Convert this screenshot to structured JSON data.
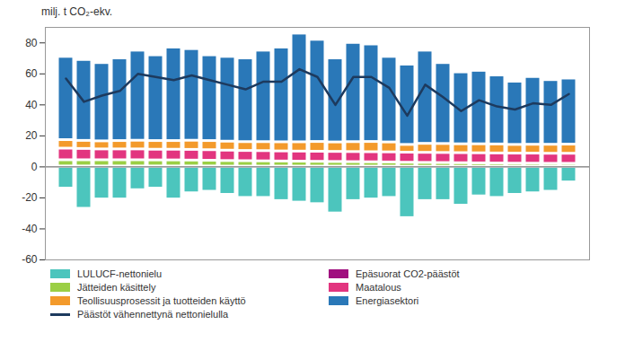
{
  "chart_data": {
    "type": "bar",
    "title": "milj. t CO₂-ekv.",
    "stacked": true,
    "grid": false,
    "tick_labels": "y",
    "categories": [
      null,
      null,
      null,
      null,
      null,
      null,
      null,
      null,
      null,
      null,
      null,
      null,
      null,
      null,
      null,
      null,
      null,
      null,
      null,
      null,
      null,
      null,
      null,
      null,
      null,
      null,
      null,
      null,
      null
    ],
    "ylim": [
      -60,
      90
    ],
    "yticks": [
      -60,
      -40,
      -20,
      0,
      20,
      40,
      60,
      80
    ],
    "series": [
      {
        "name": "LULUCF-nettonielu",
        "color": "#4cc5bd",
        "values": [
          -14,
          -27,
          -21,
          -21,
          -15,
          -14,
          -21,
          -17,
          -16,
          -18,
          -20,
          -20,
          -22,
          -23,
          -24,
          -30,
          -22,
          -21,
          -20,
          -33,
          -22,
          -22,
          -25,
          -19,
          -20,
          -18,
          -17,
          -16,
          -10
        ]
      },
      {
        "name": "Epäsuorat CO2-päästöt",
        "color": "#a0107f",
        "values": [
          0.3,
          0.3,
          0.3,
          0.3,
          0.3,
          0.3,
          0.3,
          0.3,
          0.3,
          0.2,
          0.2,
          0.2,
          0.2,
          0.2,
          0.2,
          0.2,
          0.2,
          0.2,
          0.2,
          0.1,
          0.1,
          0.1,
          0.1,
          0.1,
          0.1,
          0.1,
          0.1,
          0.1,
          0.1
        ]
      },
      {
        "name": "Jätteiden käsittely",
        "color": "#9bcf45",
        "values": [
          4.0,
          4.0,
          4.0,
          4.0,
          4.0,
          3.9,
          3.9,
          3.8,
          3.7,
          3.6,
          3.5,
          3.4,
          3.3,
          3.2,
          3.1,
          3.0,
          2.9,
          2.8,
          2.7,
          2.6,
          2.5,
          2.4,
          2.3,
          2.2,
          2.1,
          2.0,
          2.0,
          1.9,
          1.9
        ]
      },
      {
        "name": "Maatalous",
        "color": "#e2357f",
        "values": [
          7.5,
          7.3,
          7.0,
          7.0,
          7.0,
          6.9,
          6.9,
          6.9,
          6.8,
          6.7,
          6.6,
          6.6,
          6.5,
          6.5,
          6.5,
          6.5,
          6.5,
          6.5,
          6.5,
          6.5,
          6.5,
          6.5,
          6.5,
          6.5,
          6.5,
          6.5,
          6.5,
          6.5,
          6.5
        ]
      },
      {
        "name": "Teollisuusprosessit ja tuotteiden käyttö",
        "color": "#f39a2b",
        "values": [
          5.5,
          5.2,
          5.2,
          5.4,
          5.6,
          5.6,
          5.6,
          5.9,
          5.9,
          5.8,
          5.7,
          5.8,
          5.9,
          6.0,
          6.3,
          6.1,
          6.4,
          6.6,
          6.4,
          5.0,
          5.8,
          5.8,
          5.7,
          5.8,
          5.8,
          5.6,
          5.7,
          5.8,
          5.9
        ]
      },
      {
        "name": "Energiasektori",
        "color": "#2a78b8",
        "values": [
          53.7,
          52.2,
          50.5,
          53.3,
          58.1,
          55.3,
          60.3,
          59.1,
          55.3,
          54.7,
          54.0,
          59.0,
          61.1,
          70.1,
          65.9,
          54.2,
          64.0,
          62.9,
          55.2,
          51.8,
          60.1,
          52.2,
          46.4,
          47.4,
          44.5,
          40.8,
          43.7,
          41.7,
          42.6
        ]
      },
      {
        "name": "Päästöt vähennettynä nettonielulla",
        "color": "#1d3a5e",
        "type": "line",
        "values": [
          57,
          42,
          46,
          49,
          60,
          58,
          56,
          59,
          56,
          53,
          50,
          55,
          55,
          63,
          58,
          40,
          58,
          58,
          51,
          33,
          53,
          45,
          36,
          43,
          39,
          37,
          41,
          40,
          47
        ]
      }
    ]
  }
}
